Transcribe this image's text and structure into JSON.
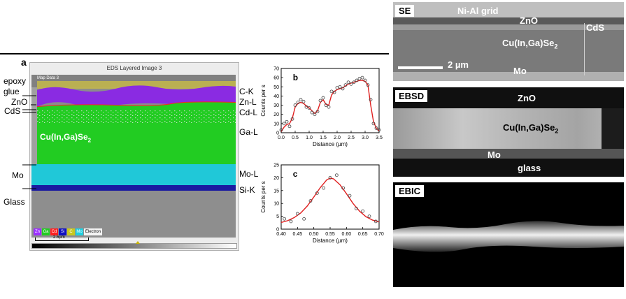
{
  "panel_a": {
    "letter": "a",
    "window_title": "EDS Layered Image 3",
    "map_label": "Map Data 3",
    "left_labels": {
      "epoxy": "epoxy",
      "glue": "glue",
      "zno": "ZnO",
      "cds": "CdS",
      "mo": "Mo",
      "glass": "Glass"
    },
    "cigs_label": "Cu(In,Ga)Se",
    "cigs_sub": "2",
    "right_labels": [
      "C-K",
      "Zn-L",
      "Cd-L",
      "Ga-L",
      "Mo-L",
      "Si-K"
    ],
    "legend": [
      {
        "text": "Zn",
        "color": "#9b30ff"
      },
      {
        "text": "Ga",
        "color": "#22cc22"
      },
      {
        "text": "Cd",
        "color": "#ff2020"
      },
      {
        "text": "Si",
        "color": "#1010c0"
      },
      {
        "text": "C",
        "color": "#e0e020"
      },
      {
        "text": "Mo",
        "color": "#20d0e0"
      }
    ],
    "legend_extra": "Electron",
    "scale_text": "2.5µm",
    "colors": {
      "zn": "#8a2be2",
      "ga": "#22cc22",
      "cd": "#ff2020",
      "mo": "#20c8d8",
      "si": "#1a1aa0",
      "c": "#d8d020"
    }
  },
  "chart_data": [
    {
      "panel": "b",
      "type": "scatter",
      "ylabel": "Counts per s",
      "xlabel": "Distance (µm)",
      "xlim": [
        0,
        3.5
      ],
      "ylim": [
        0,
        70
      ],
      "xticks": [
        "0.0",
        "0.5",
        "1.0",
        "1.5",
        "2.0",
        "2.5",
        "3.0",
        "3.5"
      ],
      "yticks": [
        "0",
        "10",
        "20",
        "30",
        "40",
        "50",
        "60",
        "70"
      ],
      "points": {
        "x": [
          0.0,
          0.1,
          0.2,
          0.3,
          0.4,
          0.5,
          0.6,
          0.7,
          0.8,
          0.9,
          1.0,
          1.1,
          1.2,
          1.3,
          1.4,
          1.5,
          1.6,
          1.7,
          1.8,
          1.9,
          2.0,
          2.1,
          2.2,
          2.3,
          2.4,
          2.5,
          2.6,
          2.7,
          2.8,
          2.9,
          3.0,
          3.1,
          3.2,
          3.3,
          3.4,
          3.5
        ],
        "y": [
          3,
          10,
          12,
          7,
          15,
          30,
          33,
          36,
          34,
          28,
          27,
          22,
          20,
          23,
          35,
          38,
          30,
          28,
          45,
          44,
          49,
          50,
          48,
          52,
          55,
          53,
          55,
          57,
          59,
          60,
          57,
          52,
          36,
          10,
          5,
          3
        ]
      },
      "fit": {
        "x": [
          0.0,
          0.1,
          0.2,
          0.3,
          0.4,
          0.5,
          0.6,
          0.7,
          0.8,
          0.9,
          1.0,
          1.1,
          1.2,
          1.3,
          1.4,
          1.5,
          1.6,
          1.7,
          1.8,
          1.9,
          2.0,
          2.1,
          2.2,
          2.3,
          2.4,
          2.5,
          2.6,
          2.7,
          2.8,
          2.9,
          3.0,
          3.1,
          3.2,
          3.3,
          3.4,
          3.5
        ],
        "y": [
          1,
          6,
          9,
          10,
          16,
          28,
          32,
          33,
          32,
          29,
          27,
          24,
          21,
          24,
          33,
          36,
          31,
          30,
          41,
          45,
          47,
          48,
          49,
          51,
          53,
          54,
          55,
          56,
          57,
          57,
          56,
          52,
          30,
          12,
          5,
          2
        ]
      },
      "series_colors": {
        "points": "#444444",
        "fit": "#e02020"
      }
    },
    {
      "panel": "c",
      "type": "scatter",
      "ylabel": "Counts per s",
      "xlabel": "Distance (µm)",
      "xlim": [
        0.4,
        0.7
      ],
      "ylim": [
        0,
        25
      ],
      "xticks": [
        "0.40",
        "0.45",
        "0.50",
        "0.55",
        "0.60",
        "0.65",
        "0.70"
      ],
      "yticks": [
        "0",
        "5",
        "10",
        "15",
        "20",
        "25"
      ],
      "points": {
        "x": [
          0.41,
          0.43,
          0.45,
          0.47,
          0.49,
          0.51,
          0.53,
          0.55,
          0.57,
          0.59,
          0.61,
          0.63,
          0.65,
          0.67,
          0.69
        ],
        "y": [
          4,
          3,
          6,
          4,
          11,
          14,
          16,
          20,
          21,
          16,
          13,
          8,
          7,
          5,
          3
        ]
      },
      "fit": {
        "x": [
          0.4,
          0.42,
          0.44,
          0.46,
          0.48,
          0.5,
          0.52,
          0.54,
          0.55,
          0.56,
          0.58,
          0.6,
          0.62,
          0.64,
          0.66,
          0.68,
          0.7
        ],
        "y": [
          2.6,
          3.3,
          4.5,
          6.3,
          9.0,
          12.5,
          16.2,
          19.2,
          19.8,
          19.6,
          17.3,
          13.8,
          10.0,
          7.0,
          4.8,
          3.5,
          2.8
        ]
      },
      "series_colors": {
        "points": "#444444",
        "fit": "#e02020"
      }
    }
  ],
  "panel_se": {
    "tag": "SE",
    "labels": {
      "grid": "Ni-Al grid",
      "zno": "ZnO",
      "cds": "CdS",
      "cigs": "Cu(In,Ga)Se",
      "cigs_sub": "2",
      "scale": "2 µm",
      "mo": "Mo"
    }
  },
  "panel_ebsd": {
    "tag": "EBSD",
    "labels": {
      "zno": "ZnO",
      "cigs": "Cu(In,Ga)Se",
      "cigs_sub": "2",
      "mo": "Mo",
      "glass": "glass"
    }
  },
  "panel_ebic": {
    "tag": "EBIC"
  }
}
